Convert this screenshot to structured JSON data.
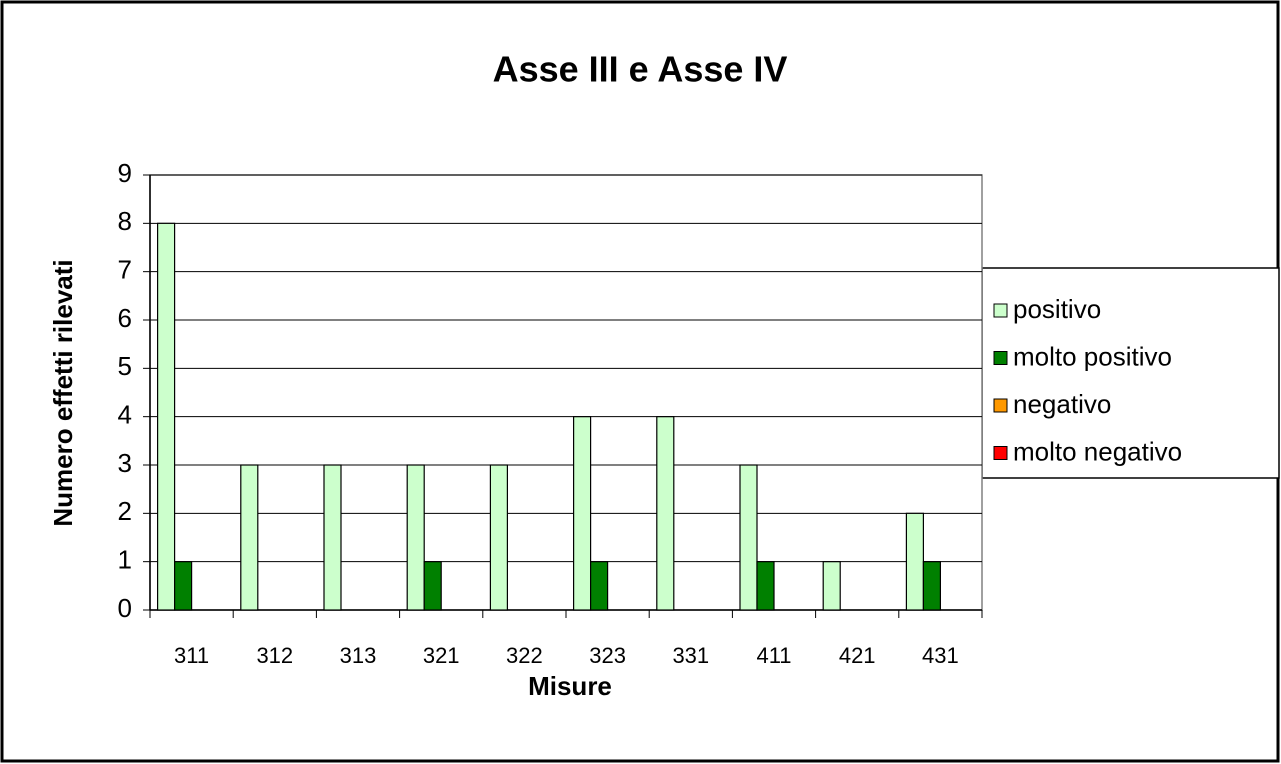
{
  "chart_data": {
    "type": "bar",
    "title": "Asse III e Asse IV",
    "xlabel": "Misure",
    "ylabel": "Numero effetti rilevati",
    "categories": [
      "311",
      "312",
      "313",
      "321",
      "322",
      "323",
      "331",
      "411",
      "421",
      "431"
    ],
    "series": [
      {
        "name": "positivo",
        "color": "#ccffcc",
        "values": [
          8,
          3,
          3,
          3,
          3,
          4,
          4,
          3,
          1,
          2
        ]
      },
      {
        "name": "molto positivo",
        "color": "#008000",
        "values": [
          1,
          0,
          0,
          1,
          0,
          1,
          0,
          1,
          0,
          1
        ]
      },
      {
        "name": "negativo",
        "color": "#ff9900",
        "values": [
          0,
          0,
          0,
          0,
          0,
          0,
          0,
          0,
          0,
          0
        ]
      },
      {
        "name": "molto negativo",
        "color": "#ff0000",
        "values": [
          0,
          0,
          0,
          0,
          0,
          0,
          0,
          0,
          0,
          0
        ]
      }
    ],
    "ylim": [
      0,
      9
    ],
    "yticks": [
      0,
      1,
      2,
      3,
      4,
      5,
      6,
      7,
      8,
      9
    ],
    "grid": true,
    "legend": "right"
  }
}
